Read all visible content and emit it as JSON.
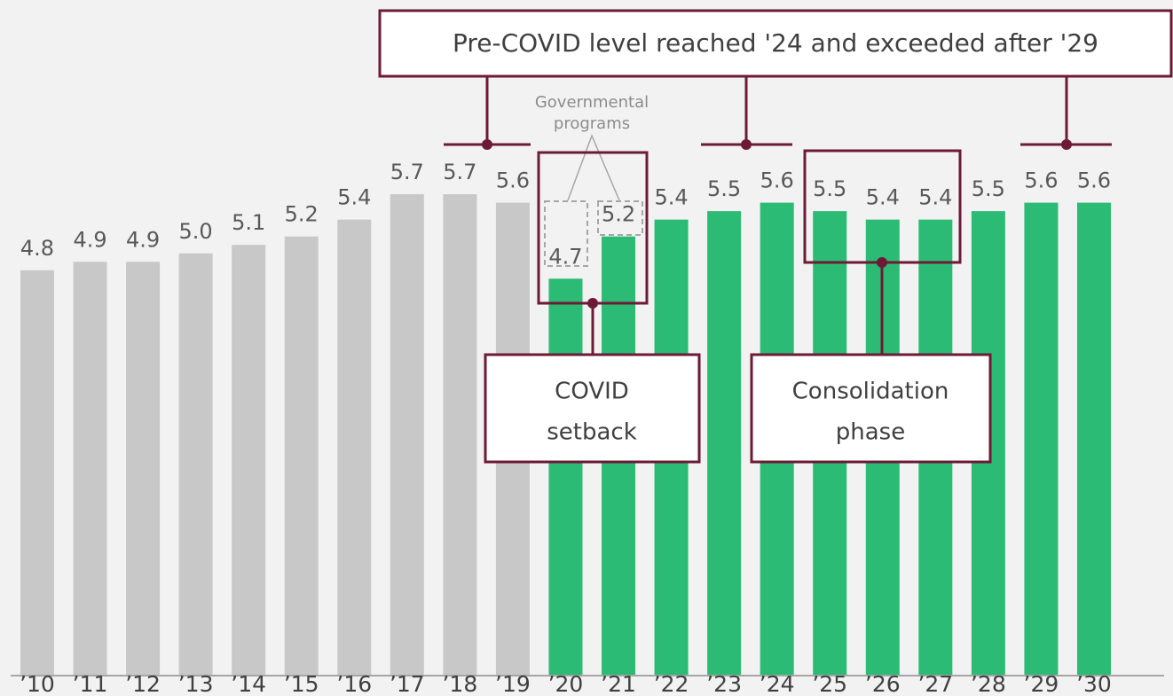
{
  "chart_data": {
    "type": "bar",
    "categories": [
      "’10",
      "’11",
      "’12",
      "’13",
      "’14",
      "’15",
      "’16",
      "’17",
      "’18",
      "’19",
      "’20",
      "’21",
      "’22",
      "’23",
      "’24",
      "’25",
      "’26",
      "’27",
      "’28",
      "’29",
      "’30"
    ],
    "values": [
      4.8,
      4.9,
      4.9,
      5.0,
      5.1,
      5.2,
      5.4,
      5.7,
      5.7,
      5.6,
      4.7,
      5.2,
      5.4,
      5.5,
      5.6,
      5.5,
      5.4,
      5.4,
      5.5,
      5.6,
      5.6
    ],
    "value_labels": [
      "4.8",
      "4.9",
      "4.9",
      "5.0",
      "5.1",
      "5.2",
      "5.4",
      "5.7",
      "5.7",
      "5.6",
      "4.7",
      "5.2",
      "5.4",
      "5.5",
      "5.6",
      "5.5",
      "5.4",
      "5.4",
      "5.5",
      "5.6",
      "5.6"
    ],
    "colors": [
      "#c8c8c8",
      "#c8c8c8",
      "#c8c8c8",
      "#c8c8c8",
      "#c8c8c8",
      "#c8c8c8",
      "#c8c8c8",
      "#c8c8c8",
      "#c8c8c8",
      "#c8c8c8",
      "#2bbb74",
      "#2bbb74",
      "#2bbb74",
      "#2bbb74",
      "#2bbb74",
      "#2bbb74",
      "#2bbb74",
      "#2bbb74",
      "#2bbb74",
      "#2bbb74",
      "#2bbb74"
    ],
    "ylim": [
      0,
      8
    ],
    "annotations": {
      "headline": "Pre-COVID level reached '24 and exceeded after '29",
      "programs": [
        "Governmental",
        "programs"
      ],
      "covid": [
        "COVID",
        "setback"
      ],
      "consolidation": [
        "Consolidation",
        "phase"
      ]
    }
  }
}
